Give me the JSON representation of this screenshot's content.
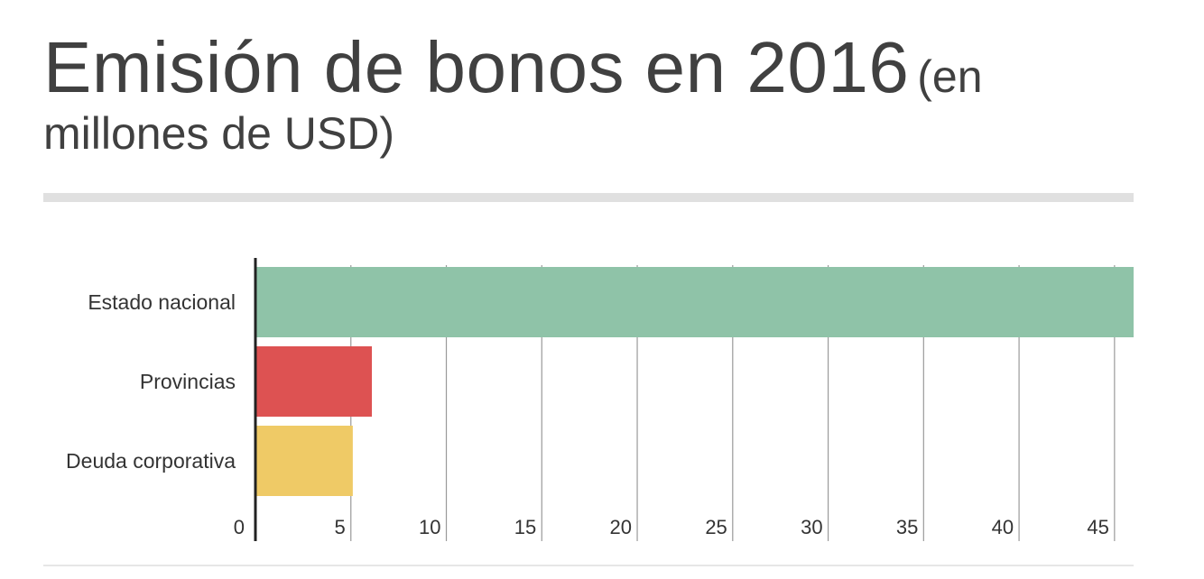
{
  "chart_data": {
    "type": "bar",
    "orientation": "horizontal",
    "title": "Emisión de bonos en 2016",
    "subtitle": "(en millones de USD)",
    "categories": [
      "Estado nacional",
      "Provincias",
      "Deuda corporativa"
    ],
    "values": [
      46,
      6.1,
      5.1
    ],
    "colors": [
      "#8fc3a8",
      "#dd5252",
      "#efca66"
    ],
    "xlim": [
      0,
      46
    ],
    "xticks": [
      0,
      5,
      10,
      15,
      20,
      25,
      30,
      35,
      40,
      45
    ],
    "xlabel": "",
    "ylabel": "",
    "grid": true,
    "legend": "none"
  }
}
